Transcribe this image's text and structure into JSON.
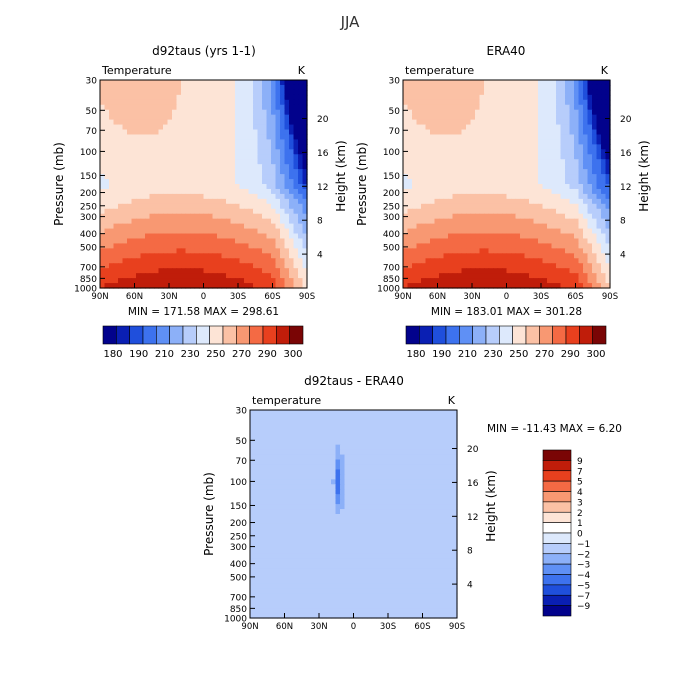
{
  "figure_title": "JJA",
  "colors": {
    "scale_abs": [
      "#02028c",
      "#0a1fb3",
      "#1f4fdc",
      "#3d72ee",
      "#5f90f5",
      "#8cb0f8",
      "#b7cdfb",
      "#dde9fc",
      "#fde4d6",
      "#fbc1a5",
      "#f89872",
      "#f46a44",
      "#e8401e",
      "#c01d0a",
      "#7a0505"
    ],
    "scale_diff": [
      "#02028c",
      "#0a1fb3",
      "#1f4fdc",
      "#3d72ee",
      "#5f90f5",
      "#8cb0f8",
      "#b7cdfb",
      "#dde9fc",
      "#ffffff",
      "#fde4d6",
      "#fbc1a5",
      "#f89872",
      "#f46a44",
      "#e8401e",
      "#c01d0a",
      "#7a0505"
    ]
  },
  "chart_data": [
    {
      "type": "heatmap",
      "title": "d92taus (yrs 1-1)",
      "field_label": "Temperature",
      "units": "K",
      "ylabel": "Pressure (mb)",
      "ylabel_right": "Height (km)",
      "x_ticks": [
        "90N",
        "60N",
        "30N",
        "0",
        "30S",
        "60S",
        "90S"
      ],
      "y_ticks": [
        "30",
        "50",
        "70",
        "100",
        "150",
        "200",
        "250",
        "300",
        "400",
        "500",
        "700",
        "850",
        "1000"
      ],
      "height_ticks": [
        "20",
        "16",
        "12",
        "8",
        "4"
      ],
      "scale": "log-pressure",
      "min_max_text": "MIN = 171.58   MAX = 298.61",
      "legend_labels": [
        "180",
        "190",
        "210",
        "230",
        "250",
        "270",
        "290",
        "300"
      ],
      "legend_placement": "bottom",
      "contour_levels": [
        180,
        185,
        190,
        200,
        210,
        220,
        230,
        240,
        250,
        260,
        270,
        280,
        290,
        300
      ],
      "min": 171.58,
      "max": 298.61
    },
    {
      "type": "heatmap",
      "title": "ERA40",
      "field_label": "temperature",
      "units": "K",
      "ylabel": "Pressure (mb)",
      "ylabel_right": "Height (km)",
      "x_ticks": [
        "90N",
        "60N",
        "30N",
        "0",
        "30S",
        "60S",
        "90S"
      ],
      "y_ticks": [
        "30",
        "50",
        "70",
        "100",
        "150",
        "200",
        "250",
        "300",
        "400",
        "500",
        "700",
        "850",
        "1000"
      ],
      "height_ticks": [
        "20",
        "16",
        "12",
        "8",
        "4"
      ],
      "scale": "log-pressure",
      "min_max_text": "MIN = 183.01   MAX = 301.28",
      "legend_labels": [
        "180",
        "190",
        "210",
        "230",
        "250",
        "270",
        "290",
        "300"
      ],
      "legend_placement": "bottom",
      "contour_levels": [
        180,
        185,
        190,
        200,
        210,
        220,
        230,
        240,
        250,
        260,
        270,
        280,
        290,
        300
      ],
      "min": 183.01,
      "max": 301.28
    },
    {
      "type": "heatmap",
      "title": "d92taus - ERA40",
      "field_label": "temperature",
      "units": "K",
      "ylabel": "Pressure (mb)",
      "ylabel_right": "Height (km)",
      "x_ticks": [
        "90N",
        "60N",
        "30N",
        "0",
        "30S",
        "60S",
        "90S"
      ],
      "y_ticks": [
        "30",
        "50",
        "70",
        "100",
        "150",
        "200",
        "250",
        "300",
        "400",
        "500",
        "700",
        "850",
        "1000"
      ],
      "height_ticks": [
        "20",
        "16",
        "12",
        "8",
        "4"
      ],
      "scale": "log-pressure",
      "min_max_text": "MIN = -11.43   MAX =    6.20",
      "legend_labels": [
        "9",
        "7",
        "5",
        "4",
        "3",
        "2",
        "1",
        "0",
        "-1",
        "-2",
        "-3",
        "-4",
        "-5",
        "-7",
        "-9"
      ],
      "legend_placement": "right",
      "contour_levels": [
        -9,
        -7,
        -5,
        -4,
        -3,
        -2,
        -1,
        0,
        1,
        2,
        3,
        4,
        5,
        7,
        9
      ],
      "min": -11.43,
      "max": 6.2
    }
  ]
}
